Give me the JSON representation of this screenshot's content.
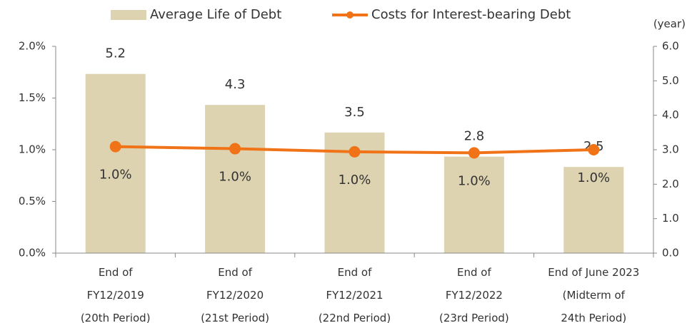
{
  "chart_data": {
    "type": "bar-line",
    "categories": [
      "End of\nFY12/2019\n(20th Period)",
      "End of\nFY12/2020\n(21st Period)",
      "End of\nFY12/2021\n(22nd Period)",
      "End of\nFY12/2022\n(23rd Period)",
      "End of June 2023\n(Midterm of\n24th Period)"
    ],
    "series": [
      {
        "name": "Average Life of Debt",
        "type": "bar",
        "axis": "y2",
        "color": "#ddd3b0",
        "values": [
          5.2,
          4.3,
          3.5,
          2.8,
          2.5
        ]
      },
      {
        "name": "Costs for Interest-bearing Debt",
        "type": "line",
        "color": "#f07317",
        "values": [
          1.03,
          1.01,
          0.98,
          0.97,
          1.0
        ],
        "value_labels": [
          "1.0%",
          "1.0%",
          "1.0%",
          "1.0%",
          "1.0%"
        ]
      }
    ],
    "ylim": [
      0,
      2.0
    ],
    "yticks": [
      {
        "value": 0,
        "label": "0.0%"
      },
      {
        "value": 0.5,
        "label": "0.5%"
      },
      {
        "value": 1.0,
        "label": "1.0%"
      },
      {
        "value": 1.5,
        "label": "1.5%"
      },
      {
        "value": 2.0,
        "label": "2.0%"
      }
    ],
    "y2label": "(year)",
    "y2lim": [
      0,
      6.0
    ],
    "y2ticks": [
      {
        "value": 0,
        "label": "0.0"
      },
      {
        "value": 1,
        "label": "1.0"
      },
      {
        "value": 2,
        "label": "2.0"
      },
      {
        "value": 3,
        "label": "3.0"
      },
      {
        "value": 4,
        "label": "4.0"
      },
      {
        "value": 5,
        "label": "5.0"
      },
      {
        "value": 6,
        "label": "6.0"
      }
    ],
    "legend": "top"
  }
}
